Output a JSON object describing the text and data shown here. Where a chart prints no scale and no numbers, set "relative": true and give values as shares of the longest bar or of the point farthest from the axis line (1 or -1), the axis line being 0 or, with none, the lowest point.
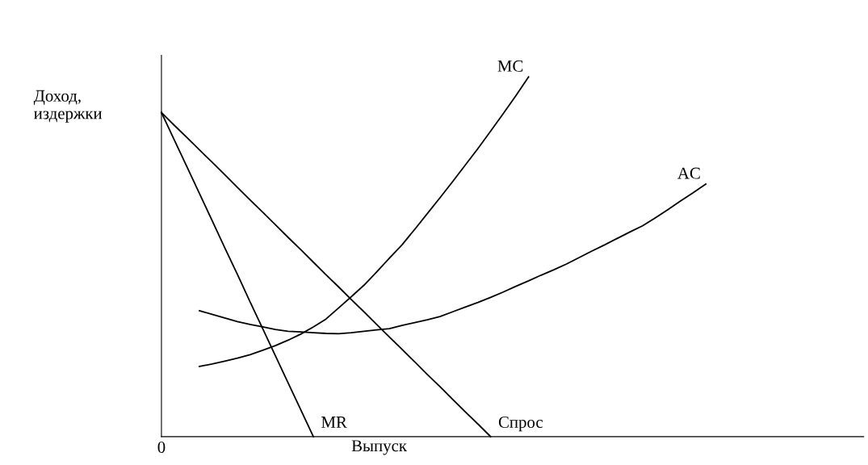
{
  "chart_data": {
    "type": "line",
    "relative": true,
    "xlabel": "Выпуск",
    "ylabel": "Доход,\nиздержки",
    "annotations": [
      "0"
    ],
    "legend": false,
    "marker": "none",
    "line_style": "solid",
    "categories": [
      null,
      null,
      null,
      null,
      null,
      null,
      null,
      null,
      null,
      null,
      null,
      null,
      null,
      null,
      null,
      null,
      null,
      null,
      null,
      null,
      null,
      null,
      null,
      null,
      null,
      null,
      null,
      null,
      null,
      null,
      null,
      null,
      null,
      null,
      null,
      null,
      null,
      null,
      null,
      null,
      null,
      null,
      null,
      null
    ],
    "series": [
      {
        "name": "MR",
        "color": "#000000",
        "values": [
          0.901,
          0.826,
          0.751,
          0.676,
          0.601,
          0.525,
          0.451,
          0.375,
          0.3,
          0.225,
          0.15,
          0.075,
          0,
          null,
          null,
          null,
          null,
          null,
          null,
          null,
          null,
          null,
          null,
          null,
          null,
          null,
          null,
          null,
          null,
          null,
          null,
          null,
          null,
          null,
          null,
          null,
          null,
          null,
          null,
          null,
          null,
          null,
          null,
          null
        ]
      },
      {
        "name": "Спрос",
        "color": "#000000",
        "values": [
          0.901,
          0.866,
          0.832,
          0.797,
          0.763,
          0.728,
          0.693,
          0.658,
          0.624,
          0.589,
          0.554,
          0.52,
          0.485,
          0.45,
          0.416,
          0.381,
          0.347,
          0.312,
          0.277,
          0.243,
          0.208,
          0.173,
          0.139,
          0.104,
          0.069,
          0.035,
          0,
          null,
          null,
          null,
          null,
          null,
          null,
          null,
          null,
          null,
          null,
          null,
          null,
          null,
          null,
          null,
          null,
          null
        ]
      },
      {
        "name": "MC",
        "color": "#000000",
        "values": [
          null,
          null,
          null,
          0.195,
          0.202,
          0.21,
          0.218,
          0.228,
          0.24,
          0.253,
          0.268,
          0.285,
          0.305,
          0.327,
          0.358,
          0.389,
          0.421,
          0.458,
          0.496,
          0.533,
          0.576,
          0.62,
          0.664,
          0.709,
          0.755,
          0.801,
          0.849,
          0.898,
          0.948,
          1,
          null,
          null,
          null,
          null,
          null,
          null,
          null,
          null,
          null,
          null,
          null,
          null,
          null,
          null
        ]
      },
      {
        "name": "AC",
        "color": "#000000",
        "values": [
          null,
          null,
          null,
          0.35,
          0.34,
          0.33,
          0.32,
          0.312,
          0.305,
          0.298,
          0.293,
          0.291,
          0.289,
          0.287,
          0.286,
          0.289,
          0.293,
          0.297,
          0.3,
          0.309,
          0.317,
          0.325,
          0.334,
          0.347,
          0.36,
          0.373,
          0.387,
          0.402,
          0.418,
          0.433,
          0.449,
          0.464,
          0.48,
          0.498,
          0.516,
          0.533,
          0.551,
          0.569,
          0.586,
          0.608,
          0.631,
          0.655,
          0.678,
          0.702
        ]
      }
    ]
  }
}
